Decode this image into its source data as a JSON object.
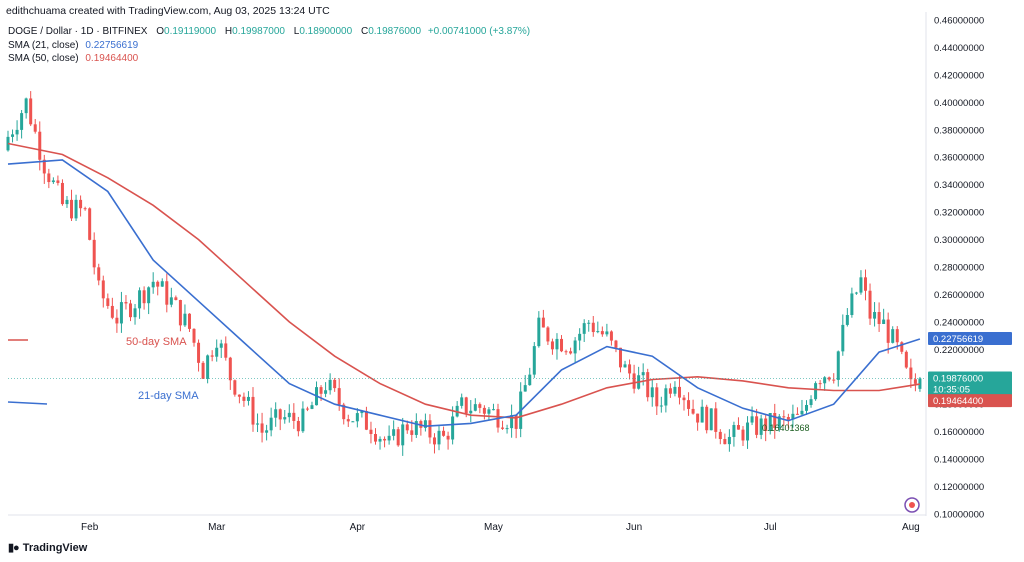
{
  "header": {
    "created_by": "edithchuama created with TradingView.com, Aug 03, 2025 13:24 UTC"
  },
  "symbol_line": {
    "symbol": "DOGE / Dollar · 1D · BITFINEX",
    "open_label": "O",
    "open": "0.19119000",
    "high_label": "H",
    "high": "0.19987000",
    "low_label": "L",
    "low": "0.18900000",
    "close_label": "C",
    "close": "0.19876000",
    "change": "+0.00741000 (+3.87%)"
  },
  "indicators": [
    {
      "label": "SMA (21, close)",
      "value": "0.22756619",
      "color": "#3a6fd0"
    },
    {
      "label": "SMA (50, close)",
      "value": "0.19464400",
      "color": "#d9534f"
    }
  ],
  "annotations": {
    "sma50_text": "50-day SMA",
    "sma21_text": "21-day SMA",
    "low_marker": "0.16401368"
  },
  "price_tags": {
    "sma21": "0.22756619",
    "price": "0.19876000",
    "countdown": "10:35:05",
    "sma50": "0.19464400"
  },
  "footer": {
    "brand": "TradingView"
  },
  "colors": {
    "up": "#26a69a",
    "down": "#ef5350",
    "sma21": "#3a6fd0",
    "sma50": "#d9534f",
    "axis_text": "#131722",
    "price_tag": "#26a69a"
  },
  "chart_data": {
    "type": "candlestick",
    "title": "DOGE / Dollar · 1D · BITFINEX",
    "ylim": [
      0.1,
      0.46
    ],
    "y_ticks": [
      "0.10000000",
      "0.12000000",
      "0.14000000",
      "0.16000000",
      "0.18000000",
      "0.20000000",
      "0.22000000",
      "0.24000000",
      "0.26000000",
      "0.28000000",
      "0.30000000",
      "0.32000000",
      "0.34000000",
      "0.36000000",
      "0.38000000",
      "0.40000000",
      "0.42000000",
      "0.44000000",
      "0.46000000"
    ],
    "x_ticks": [
      "Feb",
      "Mar",
      "Apr",
      "May",
      "Jun",
      "Jul",
      "Aug"
    ],
    "close_points": [
      {
        "date": "2025-01-14",
        "close": 0.375
      },
      {
        "date": "2025-01-18",
        "close": 0.4
      },
      {
        "date": "2025-01-22",
        "close": 0.355
      },
      {
        "date": "2025-01-26",
        "close": 0.325
      },
      {
        "date": "2025-01-31",
        "close": 0.32
      },
      {
        "date": "2025-02-03",
        "close": 0.262
      },
      {
        "date": "2025-02-07",
        "close": 0.243
      },
      {
        "date": "2025-02-11",
        "close": 0.255
      },
      {
        "date": "2025-02-15",
        "close": 0.27
      },
      {
        "date": "2025-02-19",
        "close": 0.255
      },
      {
        "date": "2025-02-23",
        "close": 0.235
      },
      {
        "date": "2025-02-26",
        "close": 0.205
      },
      {
        "date": "2025-03-01",
        "close": 0.23
      },
      {
        "date": "2025-03-04",
        "close": 0.2
      },
      {
        "date": "2025-03-08",
        "close": 0.178
      },
      {
        "date": "2025-03-11",
        "close": 0.16
      },
      {
        "date": "2025-03-15",
        "close": 0.17
      },
      {
        "date": "2025-03-20",
        "close": 0.168
      },
      {
        "date": "2025-03-25",
        "close": 0.195
      },
      {
        "date": "2025-03-30",
        "close": 0.172
      },
      {
        "date": "2025-04-04",
        "close": 0.165
      },
      {
        "date": "2025-04-08",
        "close": 0.15
      },
      {
        "date": "2025-04-12",
        "close": 0.165
      },
      {
        "date": "2025-04-16",
        "close": 0.16
      },
      {
        "date": "2025-04-20",
        "close": 0.155
      },
      {
        "date": "2025-04-24",
        "close": 0.178
      },
      {
        "date": "2025-04-28",
        "close": 0.178
      },
      {
        "date": "2025-05-02",
        "close": 0.172
      },
      {
        "date": "2025-05-06",
        "close": 0.168
      },
      {
        "date": "2025-05-09",
        "close": 0.205
      },
      {
        "date": "2025-05-11",
        "close": 0.235
      },
      {
        "date": "2025-05-14",
        "close": 0.228
      },
      {
        "date": "2025-05-18",
        "close": 0.224
      },
      {
        "date": "2025-05-22",
        "close": 0.24
      },
      {
        "date": "2025-05-26",
        "close": 0.228
      },
      {
        "date": "2025-05-30",
        "close": 0.205
      },
      {
        "date": "2025-06-03",
        "close": 0.195
      },
      {
        "date": "2025-06-06",
        "close": 0.18
      },
      {
        "date": "2025-06-10",
        "close": 0.2
      },
      {
        "date": "2025-06-14",
        "close": 0.175
      },
      {
        "date": "2025-06-18",
        "close": 0.168
      },
      {
        "date": "2025-06-22",
        "close": 0.155
      },
      {
        "date": "2025-06-26",
        "close": 0.162
      },
      {
        "date": "2025-06-30",
        "close": 0.165
      },
      {
        "date": "2025-07-04",
        "close": 0.167
      },
      {
        "date": "2025-07-08",
        "close": 0.17
      },
      {
        "date": "2025-07-11",
        "close": 0.2
      },
      {
        "date": "2025-07-15",
        "close": 0.205
      },
      {
        "date": "2025-07-18",
        "close": 0.245
      },
      {
        "date": "2025-07-21",
        "close": 0.27
      },
      {
        "date": "2025-07-23",
        "close": 0.245
      },
      {
        "date": "2025-07-26",
        "close": 0.238
      },
      {
        "date": "2025-07-29",
        "close": 0.22
      },
      {
        "date": "2025-08-01",
        "close": 0.192
      },
      {
        "date": "2025-08-03",
        "close": 0.19876
      }
    ],
    "series": [
      {
        "name": "SMA (21, close)",
        "values": [
          {
            "date": "2025-01-14",
            "value": 0.355
          },
          {
            "date": "2025-01-26",
            "value": 0.358
          },
          {
            "date": "2025-02-05",
            "value": 0.335
          },
          {
            "date": "2025-02-15",
            "value": 0.285
          },
          {
            "date": "2025-02-25",
            "value": 0.255
          },
          {
            "date": "2025-03-07",
            "value": 0.225
          },
          {
            "date": "2025-03-17",
            "value": 0.195
          },
          {
            "date": "2025-03-27",
            "value": 0.18
          },
          {
            "date": "2025-04-06",
            "value": 0.172
          },
          {
            "date": "2025-04-16",
            "value": 0.164
          },
          {
            "date": "2025-04-26",
            "value": 0.166
          },
          {
            "date": "2025-05-06",
            "value": 0.172
          },
          {
            "date": "2025-05-16",
            "value": 0.205
          },
          {
            "date": "2025-05-26",
            "value": 0.222
          },
          {
            "date": "2025-06-05",
            "value": 0.215
          },
          {
            "date": "2025-06-15",
            "value": 0.192
          },
          {
            "date": "2025-06-25",
            "value": 0.177
          },
          {
            "date": "2025-07-05",
            "value": 0.168
          },
          {
            "date": "2025-07-15",
            "value": 0.18
          },
          {
            "date": "2025-07-25",
            "value": 0.218
          },
          {
            "date": "2025-08-03",
            "value": 0.22756619
          }
        ]
      },
      {
        "name": "SMA (50, close)",
        "values": [
          {
            "date": "2025-01-14",
            "value": 0.37
          },
          {
            "date": "2025-01-26",
            "value": 0.362
          },
          {
            "date": "2025-02-05",
            "value": 0.345
          },
          {
            "date": "2025-02-15",
            "value": 0.325
          },
          {
            "date": "2025-02-25",
            "value": 0.3
          },
          {
            "date": "2025-03-07",
            "value": 0.27
          },
          {
            "date": "2025-03-17",
            "value": 0.24
          },
          {
            "date": "2025-03-27",
            "value": 0.215
          },
          {
            "date": "2025-04-06",
            "value": 0.195
          },
          {
            "date": "2025-04-16",
            "value": 0.18
          },
          {
            "date": "2025-04-26",
            "value": 0.172
          },
          {
            "date": "2025-05-06",
            "value": 0.17
          },
          {
            "date": "2025-05-16",
            "value": 0.18
          },
          {
            "date": "2025-05-26",
            "value": 0.192
          },
          {
            "date": "2025-06-05",
            "value": 0.198
          },
          {
            "date": "2025-06-15",
            "value": 0.2
          },
          {
            "date": "2025-06-25",
            "value": 0.197
          },
          {
            "date": "2025-07-05",
            "value": 0.192
          },
          {
            "date": "2025-07-15",
            "value": 0.19
          },
          {
            "date": "2025-07-25",
            "value": 0.19
          },
          {
            "date": "2025-08-03",
            "value": 0.194644
          }
        ]
      }
    ]
  }
}
